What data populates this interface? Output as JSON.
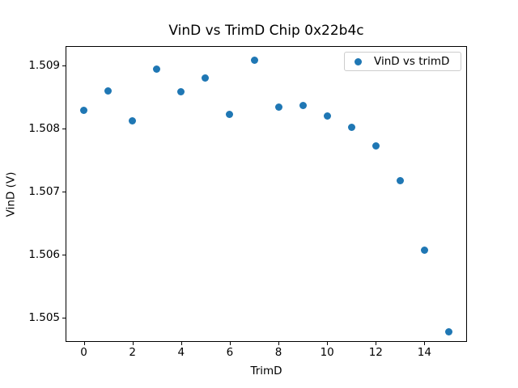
{
  "figure": {
    "background": "#ffffff",
    "spine_color": "#000000"
  },
  "chart_data": {
    "type": "scatter",
    "title": "VinD vs TrimD Chip 0x22b4c",
    "xlabel": "TrimD",
    "ylabel": "VinD (V)",
    "grid": false,
    "legend": {
      "position": "upper right",
      "entries": [
        {
          "label": "VinD vs trimD",
          "marker": "circle",
          "color": "#1f77b4"
        }
      ]
    },
    "series": [
      {
        "name": "VinD vs trimD",
        "color": "#1f77b4",
        "x": [
          0,
          1,
          2,
          3,
          4,
          5,
          6,
          7,
          8,
          9,
          10,
          11,
          12,
          13,
          14,
          15
        ],
        "y": [
          1.50829,
          1.5086,
          1.50812,
          1.50894,
          1.50859,
          1.5088,
          1.50823,
          1.50909,
          1.50834,
          1.50836,
          1.5082,
          1.50802,
          1.50772,
          1.50717,
          1.50607,
          1.50478
        ]
      }
    ],
    "xlim": [
      -0.75,
      15.75
    ],
    "ylim": [
      1.504615,
      1.509308
    ],
    "xticks": {
      "values": [
        0,
        2,
        4,
        6,
        8,
        10,
        12,
        14
      ],
      "labels": [
        "0",
        "2",
        "4",
        "6",
        "8",
        "10",
        "12",
        "14"
      ]
    },
    "yticks": {
      "values": [
        1.505,
        1.506,
        1.507,
        1.508,
        1.509
      ],
      "labels": [
        "1.505",
        "1.506",
        "1.507",
        "1.508",
        "1.509"
      ]
    }
  }
}
